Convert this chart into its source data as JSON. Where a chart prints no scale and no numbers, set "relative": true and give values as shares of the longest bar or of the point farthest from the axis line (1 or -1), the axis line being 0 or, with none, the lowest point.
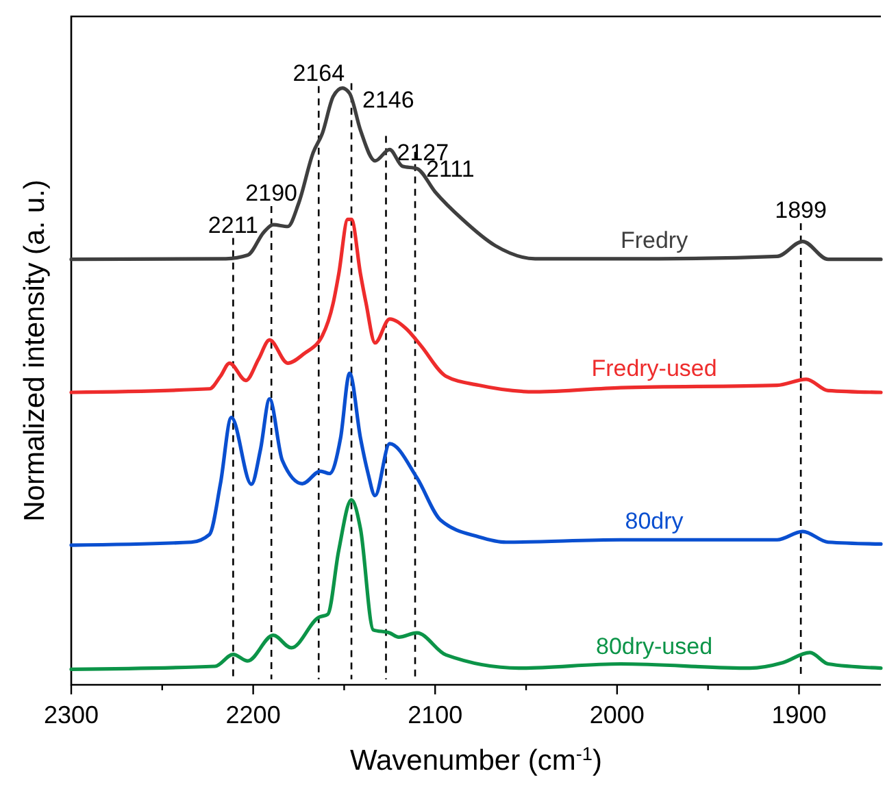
{
  "chart_data": {
    "type": "line",
    "relative": true,
    "xlabel": "Wavenumber (cm$^{-1}$)",
    "ylabel": "Normalized intensity (a. u.)",
    "xlim": [
      2300,
      1855
    ],
    "xticks": [
      2300,
      {
        "value": 2250,
        "label": null
      },
      2200,
      {
        "value": 2150,
        "label": null
      },
      2100,
      {
        "value": 2050,
        "label": null
      },
      2000,
      {
        "value": 1950,
        "label": null
      },
      1900
    ],
    "grid": false,
    "marker": "none",
    "line_style": "solid",
    "series": [
      {
        "name": "Fredry",
        "color": "#3f3f3f",
        "x": [
          2300,
          2215,
          2203,
          2194,
          2189,
          2181,
          2175,
          2167,
          2162,
          2156,
          2151,
          2147,
          2141,
          2133,
          2125,
          2118,
          2110,
          2100,
          2085,
          2067,
          2045,
          1977,
          1912,
          1898,
          1884,
          1855
        ],
        "values": [
          0.713,
          0.714,
          0.72,
          0.759,
          0.771,
          0.768,
          0.807,
          0.892,
          0.924,
          0.986,
          1.0,
          0.991,
          0.929,
          0.878,
          0.897,
          0.869,
          0.865,
          0.826,
          0.78,
          0.736,
          0.714,
          0.714,
          0.718,
          0.743,
          0.713,
          0.713
        ]
      },
      {
        "name": "Fredry-used",
        "color": "#ee2c2c",
        "x": [
          2300,
          2224,
          2218,
          2213,
          2204,
          2197,
          2191,
          2181,
          2172,
          2162,
          2156,
          2153,
          2148,
          2146,
          2141,
          2138,
          2133,
          2125,
          2116,
          2108,
          2094,
          2076,
          2045,
          1998,
          1912,
          1896,
          1884,
          1855
        ],
        "values": [
          0.49,
          0.496,
          0.517,
          0.539,
          0.51,
          0.546,
          0.578,
          0.539,
          0.555,
          0.585,
          0.64,
          0.688,
          0.78,
          0.78,
          0.688,
          0.64,
          0.573,
          0.613,
          0.597,
          0.569,
          0.517,
          0.502,
          0.491,
          0.498,
          0.502,
          0.512,
          0.493,
          0.49
        ]
      },
      {
        "name": "80dry",
        "color": "#0a4fd0",
        "x": [
          2300,
          2234,
          2224,
          2218,
          2212,
          2201,
          2196,
          2191,
          2184,
          2173,
          2163,
          2158,
          2152,
          2147,
          2141,
          2137,
          2133,
          2125,
          2110,
          2097,
          2076,
          2061,
          1998,
          1912,
          1898,
          1884,
          1855
        ],
        "values": [
          0.234,
          0.239,
          0.252,
          0.337,
          0.448,
          0.336,
          0.394,
          0.479,
          0.376,
          0.337,
          0.358,
          0.354,
          0.413,
          0.522,
          0.413,
          0.356,
          0.317,
          0.404,
          0.347,
          0.276,
          0.248,
          0.239,
          0.243,
          0.243,
          0.257,
          0.239,
          0.236
        ]
      },
      {
        "name": "80dry-used",
        "color": "#0c9448",
        "x": [
          2300,
          2221,
          2211,
          2203,
          2189,
          2179,
          2164,
          2159,
          2153,
          2146,
          2141,
          2134,
          2125,
          2120,
          2110,
          2094,
          2054,
          1998,
          1927,
          1909,
          1894,
          1884,
          1855
        ],
        "values": [
          0.026,
          0.031,
          0.051,
          0.04,
          0.083,
          0.062,
          0.113,
          0.118,
          0.225,
          0.31,
          0.261,
          0.092,
          0.087,
          0.08,
          0.087,
          0.05,
          0.028,
          0.035,
          0.028,
          0.037,
          0.054,
          0.035,
          0.028
        ]
      }
    ],
    "ref_lines": [
      {
        "axis": "x",
        "value": 2211,
        "label": "2211",
        "line_style": "dashed",
        "color": "#000000"
      },
      {
        "axis": "x",
        "value": 2190,
        "label": "2190",
        "line_style": "dashed",
        "color": "#000000"
      },
      {
        "axis": "x",
        "value": 2164,
        "label": "2164",
        "line_style": "dashed",
        "color": "#000000"
      },
      {
        "axis": "x",
        "value": 2146,
        "label": "2146",
        "line_style": "dashed",
        "color": "#000000"
      },
      {
        "axis": "x",
        "value": 2127,
        "label": "2127",
        "line_style": "dashed",
        "color": "#000000"
      },
      {
        "axis": "x",
        "value": 2111,
        "label": "2111",
        "line_style": "dashed",
        "color": "#000000"
      },
      {
        "axis": "x",
        "value": 1899,
        "label": "1899",
        "line_style": "dashed",
        "color": "#000000"
      }
    ]
  }
}
